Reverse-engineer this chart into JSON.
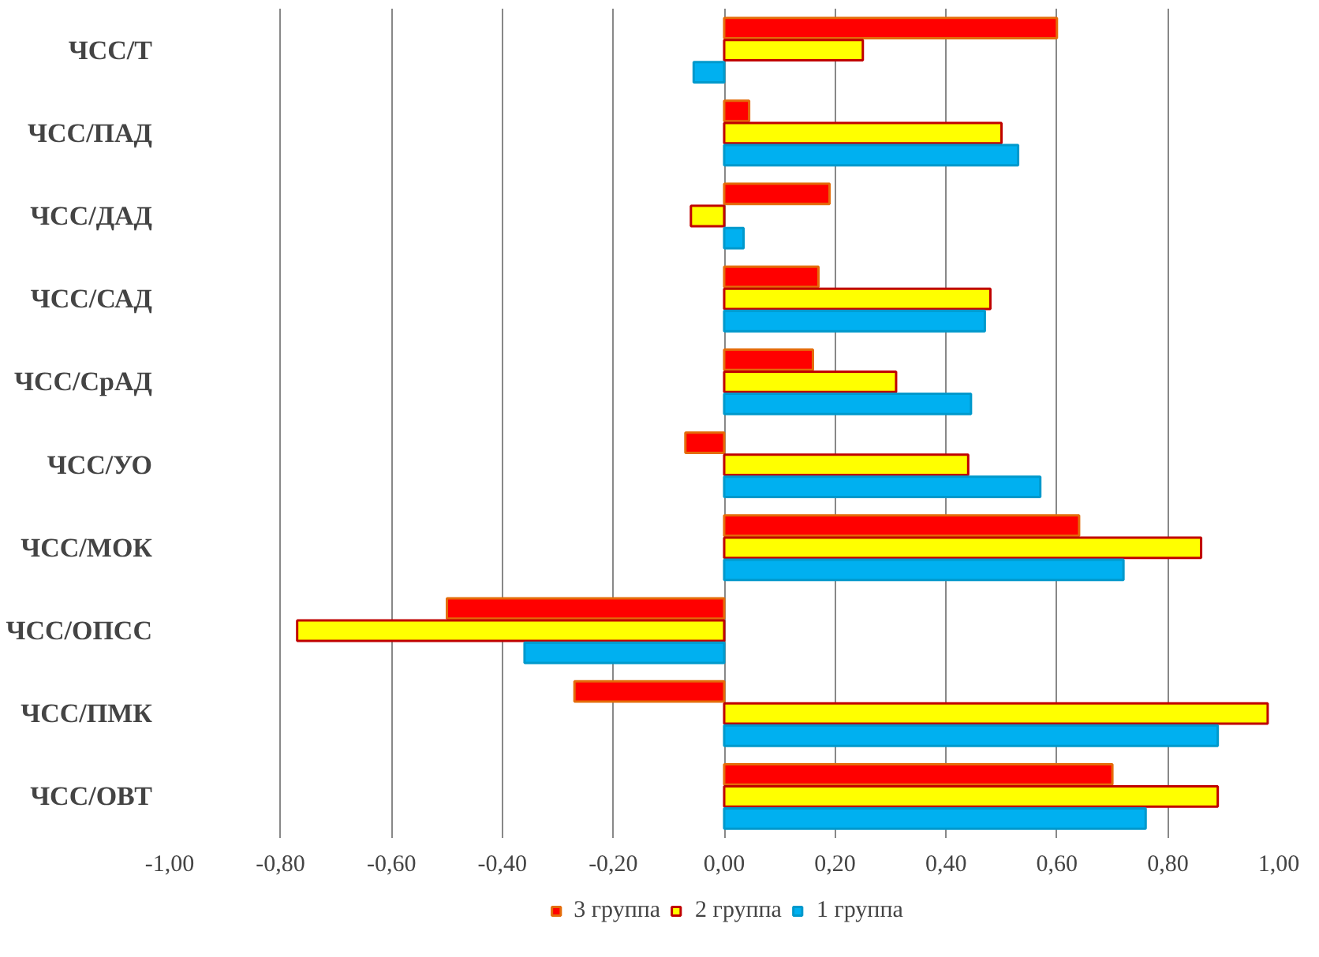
{
  "chart_data": {
    "type": "bar",
    "orientation": "horizontal",
    "categories": [
      "ЧСС/Т",
      "ЧСС/ПАД",
      "ЧСС/ДАД",
      "ЧСС/САД",
      "ЧСС/СрАД",
      "ЧСС/УО",
      "ЧСС/МОК",
      "ЧСС/ОПСС",
      "ЧСС/ПМК",
      "ЧСС/ОВТ"
    ],
    "series": [
      {
        "name": "3 группа",
        "color": "#ff0000",
        "values": [
          0.6,
          0.045,
          0.19,
          0.17,
          0.16,
          -0.07,
          0.64,
          -0.5,
          -0.27,
          0.7
        ]
      },
      {
        "name": "2 группа",
        "color": "#ffff00",
        "values": [
          0.25,
          0.5,
          -0.06,
          0.48,
          0.31,
          0.44,
          0.86,
          -0.77,
          0.98,
          0.89
        ]
      },
      {
        "name": "1 группа",
        "color": "#00b0f0",
        "values": [
          -0.055,
          0.53,
          0.035,
          0.47,
          0.445,
          0.57,
          0.72,
          -0.36,
          0.89,
          0.76
        ]
      }
    ],
    "xlim": [
      -1.0,
      1.0
    ],
    "xticks": [
      {
        "value": -1.0,
        "label": "-1,00"
      },
      {
        "value": -0.8,
        "label": "-0,80"
      },
      {
        "value": -0.6,
        "label": "-0,60"
      },
      {
        "value": -0.4,
        "label": "-0,40"
      },
      {
        "value": -0.2,
        "label": "-0,20"
      },
      {
        "value": 0.0,
        "label": "0,00"
      },
      {
        "value": 0.2,
        "label": "0,20"
      },
      {
        "value": 0.4,
        "label": "0,40"
      },
      {
        "value": 0.6,
        "label": "0,60"
      },
      {
        "value": 0.8,
        "label": "0,80"
      },
      {
        "value": 1.0,
        "label": "1,00"
      }
    ],
    "grid": "x",
    "legend": "bottom"
  }
}
